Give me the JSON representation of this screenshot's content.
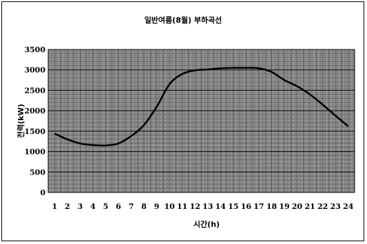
{
  "chart_data": {
    "type": "line",
    "title": "일반여름(8월) 부하곡선",
    "xlabel": "시간(h)",
    "ylabel": "전력(kW)",
    "x": [
      1,
      2,
      3,
      4,
      5,
      6,
      7,
      8,
      9,
      10,
      11,
      12,
      13,
      14,
      15,
      16,
      17,
      18,
      19,
      20,
      21,
      22,
      23,
      24
    ],
    "x_tick_labels": [
      "1",
      "2",
      "3",
      "4",
      "5",
      "6",
      "7",
      "8",
      "9",
      "10",
      "11",
      "12",
      "13",
      "14",
      "15",
      "16",
      "17",
      "18",
      "19",
      "20",
      "21",
      "22",
      "23",
      "24"
    ],
    "series": [
      {
        "values": [
          1440,
          1300,
          1200,
          1160,
          1150,
          1200,
          1380,
          1650,
          2100,
          2650,
          2900,
          2990,
          3010,
          3040,
          3050,
          3050,
          3040,
          2950,
          2750,
          2600,
          2400,
          2150,
          1880,
          1620
        ],
        "color": "#000000"
      }
    ],
    "ylim": [
      0,
      3500
    ],
    "y_ticks": [
      0,
      500,
      1000,
      1500,
      2000,
      2500,
      3000,
      3500
    ],
    "grid": true,
    "plot_background": "#8c8c8c",
    "grid_color": "#1a1a1a"
  }
}
